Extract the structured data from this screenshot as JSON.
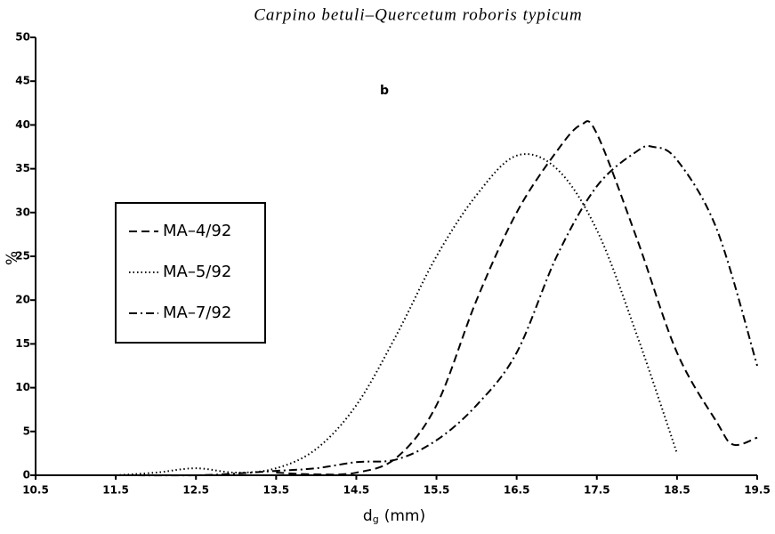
{
  "chart_data": {
    "type": "line",
    "title": "Carpino betuli–Quercetum roboris typicum",
    "annotation": "b",
    "ylabel": "%",
    "xlabel": {
      "symbol": "d",
      "subscript": "g",
      "unit": "(mm)"
    },
    "xlim": [
      10.5,
      19.5
    ],
    "xticks": [
      10.5,
      11.5,
      12.5,
      13.5,
      14.5,
      15.5,
      16.5,
      17.5,
      18.5,
      19.5
    ],
    "ylim": [
      0,
      50
    ],
    "yticks": [
      0,
      5,
      10,
      15,
      20,
      25,
      30,
      35,
      40,
      45,
      50
    ],
    "grid": false,
    "legend": "left",
    "series": [
      {
        "name": "MA–4/92",
        "color": "#000000",
        "dash": "dashed",
        "x": [
          13.5,
          14,
          14.5,
          15,
          15.5,
          16,
          16.5,
          17,
          17.3,
          17.5,
          18,
          18.5,
          19,
          19.2,
          19.5
        ],
        "values": [
          0.3,
          0.1,
          0.3,
          2,
          8,
          20,
          30,
          37,
          40,
          39,
          27,
          14,
          6,
          3.5,
          4.3
        ]
      },
      {
        "name": "MA–5/92",
        "color": "#000000",
        "dash": "dotted",
        "x": [
          11.5,
          12,
          12.5,
          13,
          13.5,
          14,
          14.5,
          15,
          15.5,
          16,
          16.5,
          17,
          17.5,
          18,
          18.5
        ],
        "values": [
          0,
          0.3,
          0.8,
          0.3,
          0.8,
          3,
          8,
          16,
          25,
          32,
          36.5,
          35,
          28,
          16,
          2.5
        ]
      },
      {
        "name": "MA–7/92",
        "color": "#000000",
        "dash": "dashdot",
        "x": [
          10.5,
          11.5,
          12.5,
          13,
          13.5,
          14,
          14.5,
          15,
          15.5,
          16,
          16.5,
          17,
          17.5,
          18,
          18.2,
          18.5,
          19,
          19.5
        ],
        "values": [
          0,
          0,
          0,
          0.2,
          0.5,
          0.8,
          1.5,
          1.8,
          4,
          8,
          14,
          25,
          33,
          37,
          37.5,
          36,
          28,
          12.5
        ]
      }
    ]
  }
}
